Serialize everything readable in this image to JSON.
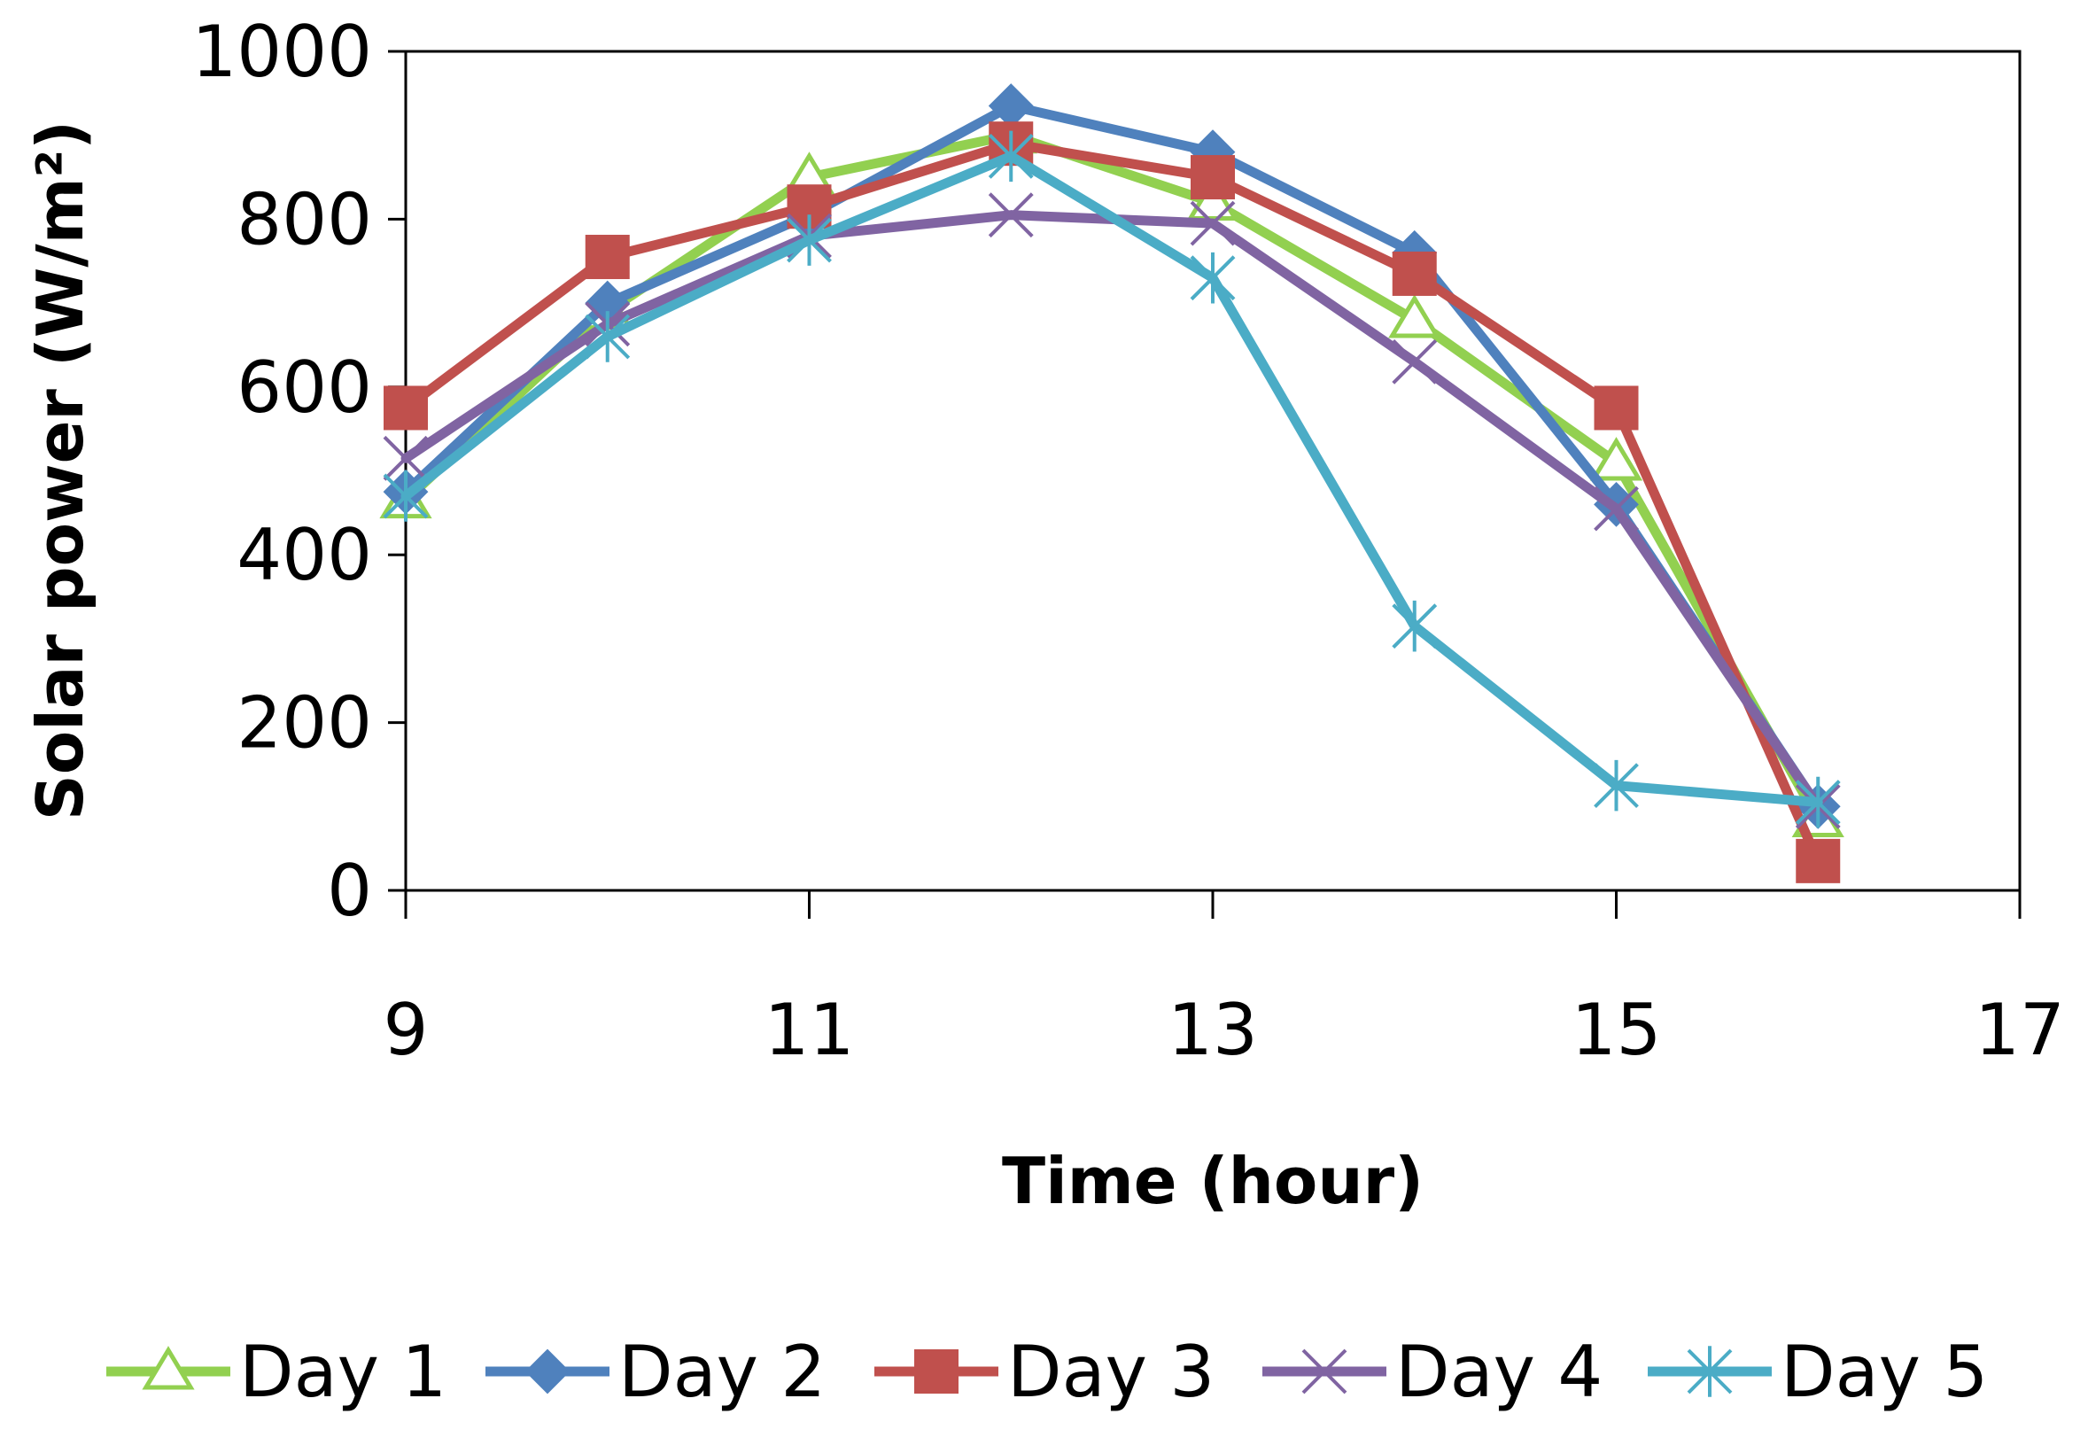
{
  "chart_data": {
    "type": "line",
    "title": "",
    "xlabel": "Time (hour)",
    "ylabel": "Solar power (W/m²)",
    "xlim": [
      9,
      17
    ],
    "ylim": [
      0,
      1000
    ],
    "x_ticks": [
      "9",
      "11",
      "13",
      "15",
      "17"
    ],
    "y_ticks": [
      "0",
      "200",
      "400",
      "600",
      "800",
      "1000"
    ],
    "x_tick_values": [
      9,
      11,
      13,
      15,
      17
    ],
    "y_tick_values": [
      0,
      200,
      400,
      600,
      800,
      1000
    ],
    "grid": false,
    "legend_position": "bottom",
    "x": [
      9,
      10,
      11,
      12,
      13,
      14,
      15,
      16
    ],
    "series": [
      {
        "name": "Day 1",
        "color": "#92D050",
        "marker": "triangle",
        "values": [
          465,
          690,
          850,
          900,
          820,
          680,
          510,
          85
        ]
      },
      {
        "name": "Day 2",
        "color": "#4F81BD",
        "marker": "diamond",
        "values": [
          475,
          700,
          805,
          935,
          880,
          760,
          460,
          100
        ]
      },
      {
        "name": "Day 3",
        "color": "#C0504D",
        "marker": "square",
        "values": [
          575,
          755,
          815,
          890,
          850,
          735,
          575,
          35
        ]
      },
      {
        "name": "Day 4",
        "color": "#8064A2",
        "marker": "x",
        "values": [
          515,
          675,
          780,
          805,
          795,
          630,
          455,
          100
        ]
      },
      {
        "name": "Day 5",
        "color": "#4BACC6",
        "marker": "star",
        "values": [
          470,
          660,
          775,
          875,
          730,
          315,
          125,
          105
        ]
      }
    ]
  }
}
